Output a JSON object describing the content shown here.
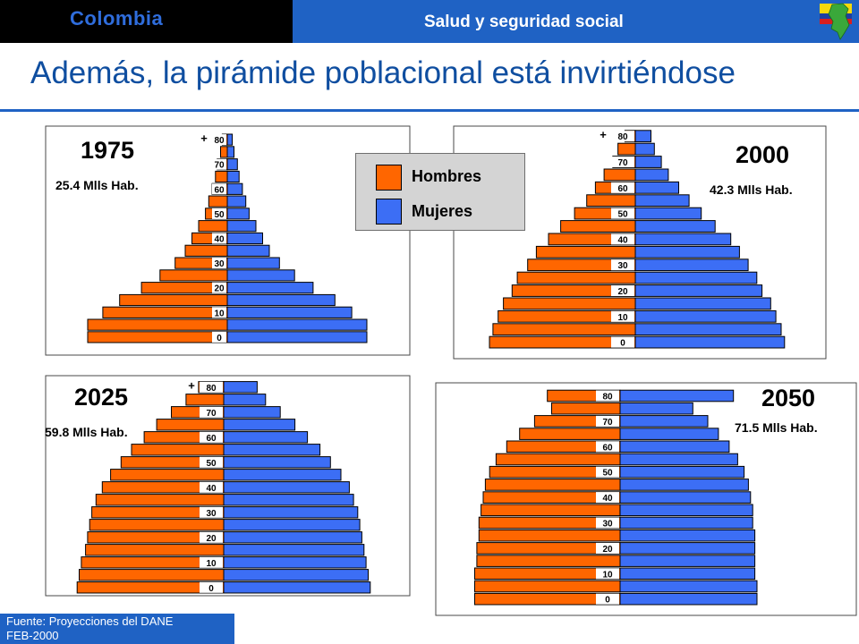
{
  "header": {
    "country": "Colombia",
    "subject": "Salud y seguridad social",
    "icon": "colombia-map-flag-icon"
  },
  "title": "Además, la pirámide poblacional está invirtiéndose",
  "legend": {
    "items": [
      {
        "label": "Hombres",
        "color": "#ff6600"
      },
      {
        "label": "Mujeres",
        "color": "#3c6ef5"
      }
    ]
  },
  "source": {
    "line1": "Fuente: Proyecciones del DANE",
    "line2": "FEB-2000"
  },
  "chart_data": [
    {
      "type": "bar",
      "orientation": "population-pyramid",
      "year": "1975",
      "population": "25.4 Mlls Hab.",
      "tick_labels": [
        "0",
        "10",
        "20",
        "30",
        "40",
        "50",
        "60",
        "70",
        "80"
      ],
      "top_marker": "+",
      "categories": [
        "0",
        "5",
        "10",
        "15",
        "20",
        "25",
        "30",
        "35",
        "40",
        "45",
        "50",
        "55",
        "60",
        "65",
        "70",
        "75",
        "80+"
      ],
      "series": [
        {
          "name": "Hombres",
          "values": [
            8.3,
            8.3,
            7.4,
            6.4,
            5.1,
            4.0,
            3.1,
            2.5,
            2.1,
            1.7,
            1.3,
            1.1,
            0.9,
            0.7,
            0.6,
            0.4,
            0.3
          ]
        },
        {
          "name": "Mujeres",
          "values": [
            8.3,
            8.3,
            7.4,
            6.4,
            5.1,
            4.0,
            3.1,
            2.5,
            2.1,
            1.7,
            1.3,
            1.1,
            0.9,
            0.7,
            0.6,
            0.4,
            0.3
          ]
        }
      ]
    },
    {
      "type": "bar",
      "orientation": "population-pyramid",
      "year": "2000",
      "population": "42.3 Mlls Hab.",
      "tick_labels": [
        "0",
        "10",
        "20",
        "30",
        "40",
        "50",
        "60",
        "70",
        "80"
      ],
      "top_marker": "+",
      "categories": [
        "0",
        "5",
        "10",
        "15",
        "20",
        "25",
        "30",
        "35",
        "40",
        "45",
        "50",
        "55",
        "60",
        "65",
        "70",
        "75",
        "80+"
      ],
      "series": [
        {
          "name": "Hombres",
          "values": [
            8.4,
            8.2,
            7.9,
            7.6,
            7.1,
            6.8,
            6.2,
            5.7,
            5.0,
            4.3,
            3.5,
            2.8,
            2.3,
            1.8,
            1.3,
            1.0,
            0.6
          ]
        },
        {
          "name": "Mujeres",
          "values": [
            8.6,
            8.4,
            8.1,
            7.8,
            7.3,
            7.0,
            6.5,
            6.0,
            5.5,
            4.6,
            3.8,
            3.1,
            2.5,
            1.9,
            1.5,
            1.1,
            0.9
          ]
        }
      ]
    },
    {
      "type": "bar",
      "orientation": "population-pyramid",
      "year": "2025",
      "population": "59.8 Mlls Hab.",
      "tick_labels": [
        "0",
        "10",
        "20",
        "30",
        "40",
        "50",
        "60",
        "70",
        "80"
      ],
      "top_marker": "+",
      "categories": [
        "0",
        "5",
        "10",
        "15",
        "20",
        "25",
        "30",
        "35",
        "40",
        "45",
        "50",
        "55",
        "60",
        "65",
        "70",
        "75",
        "80+"
      ],
      "series": [
        {
          "name": "Hombres",
          "values": [
            7.0,
            6.9,
            6.8,
            6.6,
            6.5,
            6.4,
            6.3,
            6.1,
            5.8,
            5.4,
            4.9,
            4.4,
            3.8,
            3.2,
            2.5,
            1.8,
            1.2
          ]
        },
        {
          "name": "Mujeres",
          "values": [
            7.0,
            6.9,
            6.8,
            6.7,
            6.6,
            6.5,
            6.4,
            6.2,
            6.0,
            5.6,
            5.1,
            4.6,
            4.0,
            3.4,
            2.7,
            2.0,
            1.6
          ]
        }
      ]
    },
    {
      "type": "bar",
      "orientation": "population-pyramid",
      "year": "2050",
      "population": "71.5 Mlls Hab.",
      "tick_labels": [
        "0",
        "10",
        "20",
        "30",
        "40",
        "50",
        "60",
        "70",
        "80"
      ],
      "top_marker": "",
      "categories": [
        "0",
        "5",
        "10",
        "15",
        "20",
        "25",
        "30",
        "35",
        "40",
        "45",
        "50",
        "55",
        "60",
        "65",
        "70",
        "75",
        "80+"
      ],
      "series": [
        {
          "name": "Hombres",
          "values": [
            6.8,
            6.8,
            6.8,
            6.7,
            6.7,
            6.6,
            6.6,
            6.5,
            6.4,
            6.3,
            6.1,
            5.8,
            5.3,
            4.7,
            4.0,
            3.2,
            3.4
          ]
        },
        {
          "name": "Mujeres",
          "values": [
            6.4,
            6.4,
            6.3,
            6.3,
            6.3,
            6.3,
            6.2,
            6.2,
            6.1,
            6.0,
            5.8,
            5.5,
            5.1,
            4.6,
            4.1,
            3.4,
            5.3
          ]
        }
      ]
    }
  ]
}
